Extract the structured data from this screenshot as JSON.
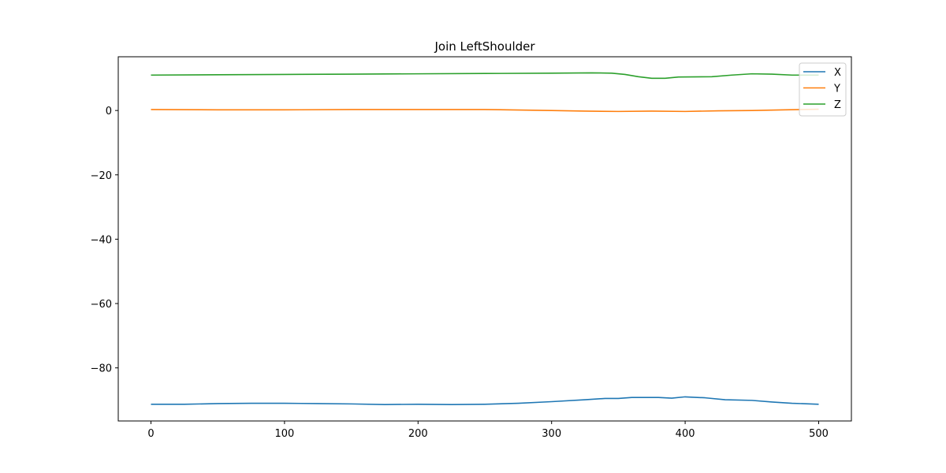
{
  "chart_data": {
    "type": "line",
    "title": "Join LeftShoulder",
    "xlabel": "",
    "ylabel": "",
    "xlim": [
      -24.5,
      524.5
    ],
    "ylim": [
      -96.5,
      16.7
    ],
    "xticks": [
      0,
      100,
      200,
      300,
      400,
      500
    ],
    "yticks": [
      0,
      -20,
      -40,
      -60,
      -80
    ],
    "grid": false,
    "legend_position": "top-right",
    "series": [
      {
        "name": "X",
        "color": "#1f77b4",
        "points": [
          [
            0,
            -91.3
          ],
          [
            25,
            -91.3
          ],
          [
            50,
            -91.1
          ],
          [
            75,
            -91.0
          ],
          [
            100,
            -91.0
          ],
          [
            125,
            -91.1
          ],
          [
            150,
            -91.2
          ],
          [
            175,
            -91.4
          ],
          [
            200,
            -91.3
          ],
          [
            225,
            -91.4
          ],
          [
            250,
            -91.3
          ],
          [
            275,
            -91.0
          ],
          [
            300,
            -90.5
          ],
          [
            325,
            -89.9
          ],
          [
            340,
            -89.5
          ],
          [
            350,
            -89.5
          ],
          [
            360,
            -89.2
          ],
          [
            380,
            -89.2
          ],
          [
            390,
            -89.4
          ],
          [
            400,
            -89.0
          ],
          [
            415,
            -89.3
          ],
          [
            430,
            -89.9
          ],
          [
            450,
            -90.1
          ],
          [
            465,
            -90.6
          ],
          [
            480,
            -91.0
          ],
          [
            500,
            -91.3
          ]
        ]
      },
      {
        "name": "Y",
        "color": "#ff7f0e",
        "points": [
          [
            0,
            0.3
          ],
          [
            50,
            0.2
          ],
          [
            100,
            0.2
          ],
          [
            150,
            0.3
          ],
          [
            200,
            0.3
          ],
          [
            250,
            0.3
          ],
          [
            300,
            0.0
          ],
          [
            325,
            -0.2
          ],
          [
            350,
            -0.3
          ],
          [
            375,
            -0.2
          ],
          [
            400,
            -0.3
          ],
          [
            425,
            -0.1
          ],
          [
            450,
            0.0
          ],
          [
            475,
            0.2
          ],
          [
            500,
            0.4
          ]
        ]
      },
      {
        "name": "Z",
        "color": "#2ca02c",
        "points": [
          [
            0,
            11.0
          ],
          [
            50,
            11.1
          ],
          [
            100,
            11.2
          ],
          [
            150,
            11.3
          ],
          [
            200,
            11.4
          ],
          [
            250,
            11.5
          ],
          [
            300,
            11.6
          ],
          [
            330,
            11.7
          ],
          [
            345,
            11.6
          ],
          [
            355,
            11.2
          ],
          [
            365,
            10.5
          ],
          [
            375,
            10.0
          ],
          [
            385,
            10.0
          ],
          [
            395,
            10.4
          ],
          [
            420,
            10.5
          ],
          [
            435,
            11.0
          ],
          [
            450,
            11.4
          ],
          [
            465,
            11.3
          ],
          [
            480,
            11.0
          ],
          [
            500,
            11.0
          ]
        ]
      }
    ]
  }
}
